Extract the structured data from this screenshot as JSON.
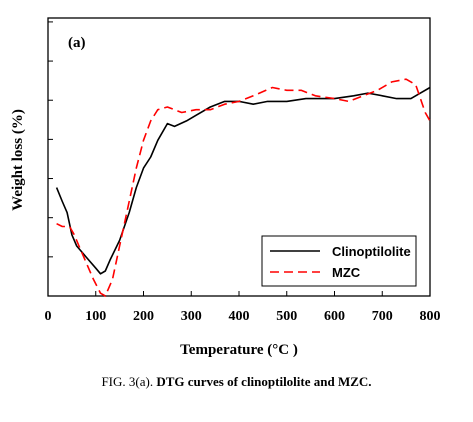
{
  "caption": {
    "prefix": "FIG. 3(a).",
    "text": "DTG curves of clinoptilolite and MZC."
  },
  "chart_data": {
    "type": "line",
    "panel_label": "(a)",
    "xlabel": "Temperature (°C )",
    "ylabel": "Weight loss (%)",
    "xlim": [
      0,
      800
    ],
    "ylim": [
      0,
      10
    ],
    "x_ticks": [
      0,
      100,
      200,
      300,
      400,
      500,
      600,
      700,
      800
    ],
    "y_ticks_labeled": false,
    "legend_position": "bottom-right",
    "series": [
      {
        "name": "Clinoptilolite",
        "color": "#000000",
        "dash": "solid",
        "points": [
          [
            18,
            3.9
          ],
          [
            30,
            3.4
          ],
          [
            40,
            3.0
          ],
          [
            50,
            2.2
          ],
          [
            60,
            1.8
          ],
          [
            80,
            1.4
          ],
          [
            100,
            1.0
          ],
          [
            110,
            0.8
          ],
          [
            120,
            0.9
          ],
          [
            130,
            1.3
          ],
          [
            150,
            2.0
          ],
          [
            170,
            3.0
          ],
          [
            185,
            3.9
          ],
          [
            200,
            4.6
          ],
          [
            215,
            5.0
          ],
          [
            230,
            5.6
          ],
          [
            250,
            6.2
          ],
          [
            265,
            6.1
          ],
          [
            290,
            6.3
          ],
          [
            310,
            6.5
          ],
          [
            340,
            6.8
          ],
          [
            370,
            7.0
          ],
          [
            400,
            7.0
          ],
          [
            430,
            6.9
          ],
          [
            460,
            7.0
          ],
          [
            500,
            7.0
          ],
          [
            540,
            7.1
          ],
          [
            570,
            7.1
          ],
          [
            600,
            7.1
          ],
          [
            640,
            7.2
          ],
          [
            670,
            7.3
          ],
          [
            700,
            7.2
          ],
          [
            730,
            7.1
          ],
          [
            760,
            7.1
          ],
          [
            780,
            7.3
          ],
          [
            800,
            7.5
          ]
        ]
      },
      {
        "name": "MZC",
        "color": "#ff0000",
        "dash": "dashed",
        "points": [
          [
            18,
            2.6
          ],
          [
            30,
            2.5
          ],
          [
            45,
            2.5
          ],
          [
            55,
            2.2
          ],
          [
            65,
            1.8
          ],
          [
            80,
            1.2
          ],
          [
            95,
            0.6
          ],
          [
            110,
            0.1
          ],
          [
            120,
            0.0
          ],
          [
            135,
            0.6
          ],
          [
            150,
            1.8
          ],
          [
            165,
            3.0
          ],
          [
            185,
            4.6
          ],
          [
            200,
            5.6
          ],
          [
            215,
            6.3
          ],
          [
            230,
            6.7
          ],
          [
            250,
            6.8
          ],
          [
            280,
            6.6
          ],
          [
            310,
            6.7
          ],
          [
            340,
            6.7
          ],
          [
            370,
            6.9
          ],
          [
            400,
            7.0
          ],
          [
            430,
            7.2
          ],
          [
            470,
            7.5
          ],
          [
            500,
            7.4
          ],
          [
            530,
            7.4
          ],
          [
            560,
            7.2
          ],
          [
            600,
            7.1
          ],
          [
            630,
            7.0
          ],
          [
            660,
            7.2
          ],
          [
            690,
            7.4
          ],
          [
            720,
            7.7
          ],
          [
            750,
            7.8
          ],
          [
            770,
            7.6
          ],
          [
            790,
            6.6
          ],
          [
            800,
            6.3
          ]
        ]
      }
    ]
  }
}
